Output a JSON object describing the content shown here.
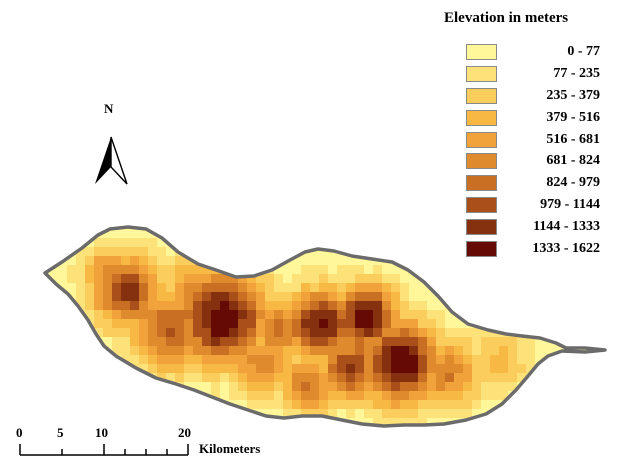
{
  "legend": {
    "title": "Elevation in meters",
    "classes": [
      {
        "label": "0 - 77",
        "color": "#fff799"
      },
      {
        "label": "77 - 235",
        "color": "#fde27a"
      },
      {
        "label": "235 - 379",
        "color": "#fbcd5c"
      },
      {
        "label": "379 - 516",
        "color": "#f8b844"
      },
      {
        "label": "516 - 681",
        "color": "#f2a23a"
      },
      {
        "label": "681 - 824",
        "color": "#e08a2e"
      },
      {
        "label": "824 - 979",
        "color": "#c86f24"
      },
      {
        "label": "979 - 1144",
        "color": "#a9501a"
      },
      {
        "label": "1144 - 1333",
        "color": "#85300f"
      },
      {
        "label": "1333 - 1622",
        "color": "#650a04"
      }
    ]
  },
  "north_arrow": {
    "label": "N"
  },
  "scale_bar": {
    "ticks": [
      "0",
      "5",
      "10",
      "20"
    ],
    "units": "Kilometers"
  },
  "island": {
    "outline_color": "#6b6b6b"
  }
}
